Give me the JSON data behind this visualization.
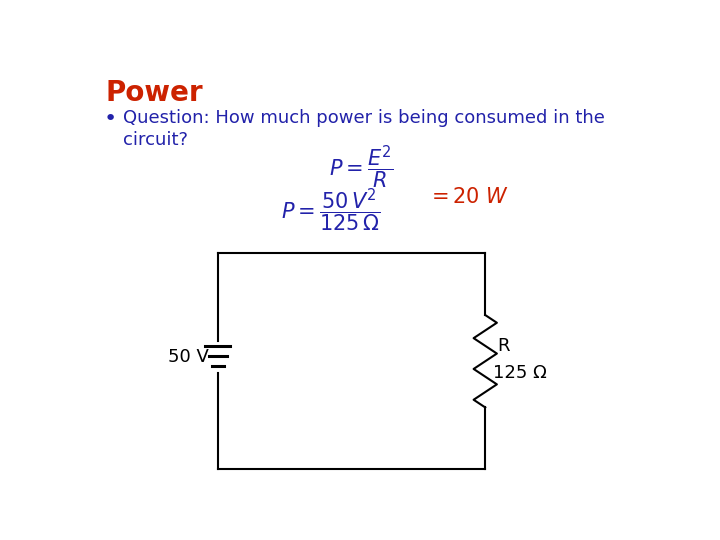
{
  "title": "Power",
  "title_color": "#cc2200",
  "bullet_text_color": "#2222aa",
  "background_color": "#ffffff",
  "circuit_voltage_label": "50 V",
  "circuit_R_label": "R",
  "circuit_ohm_label": "125 Ω"
}
